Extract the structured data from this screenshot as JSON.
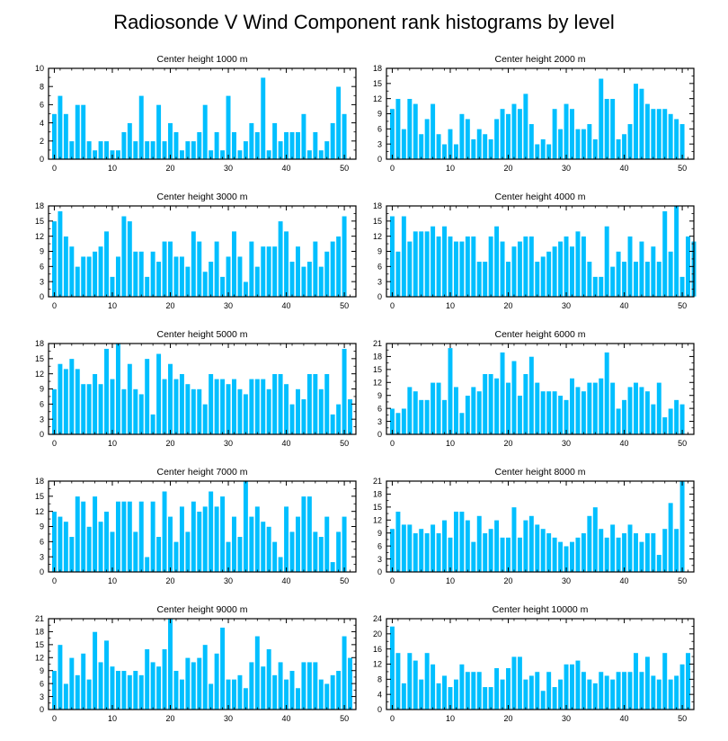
{
  "title": "Radiosonde V Wind Component rank histograms by level",
  "colors": {
    "bar": "#00BFFF",
    "bar_edge": "#ffffff",
    "axis": "#000000"
  },
  "chart_data": [
    {
      "type": "bar",
      "title": "Center height 1000 m",
      "xlim": [
        -1,
        52
      ],
      "ylim": [
        0,
        10
      ],
      "xticks": [
        0,
        10,
        20,
        30,
        40,
        50
      ],
      "yticks": [
        0,
        2,
        4,
        6,
        8,
        10
      ],
      "values": [
        5,
        7,
        5,
        2,
        6,
        6,
        2,
        1,
        2,
        2,
        1,
        1,
        3,
        4,
        2,
        7,
        2,
        2,
        6,
        2,
        4,
        3,
        1,
        2,
        2,
        3,
        6,
        1,
        3,
        1,
        7,
        3,
        1,
        2,
        4,
        3,
        9,
        1,
        4,
        2,
        3,
        3,
        3,
        5,
        1,
        3,
        1,
        2,
        4,
        8,
        5
      ]
    },
    {
      "type": "bar",
      "title": "Center height 2000 m",
      "xlim": [
        -1,
        52
      ],
      "ylim": [
        0,
        18
      ],
      "xticks": [
        0,
        10,
        20,
        30,
        40,
        50
      ],
      "yticks": [
        0,
        3,
        6,
        9,
        12,
        15,
        18
      ],
      "values": [
        10,
        12,
        6,
        12,
        11,
        5,
        8,
        11,
        5,
        3,
        6,
        3,
        9,
        8,
        4,
        6,
        5,
        4,
        8,
        10,
        9,
        11,
        10,
        13,
        7,
        3,
        4,
        3,
        10,
        6,
        11,
        10,
        6,
        6,
        7,
        4,
        16,
        12,
        12,
        4,
        5,
        7,
        15,
        14,
        11,
        10,
        10,
        10,
        9,
        8,
        7
      ]
    },
    {
      "type": "bar",
      "title": "Center height 3000 m",
      "xlim": [
        -1,
        52
      ],
      "ylim": [
        0,
        18
      ],
      "xticks": [
        0,
        10,
        20,
        30,
        40,
        50
      ],
      "yticks": [
        0,
        3,
        6,
        9,
        12,
        15,
        18
      ],
      "values": [
        15,
        17,
        12,
        10,
        6,
        8,
        8,
        9,
        10,
        13,
        4,
        8,
        16,
        15,
        9,
        9,
        4,
        9,
        7,
        11,
        11,
        8,
        8,
        6,
        13,
        11,
        5,
        7,
        11,
        4,
        8,
        13,
        8,
        3,
        11,
        6,
        10,
        10,
        10,
        15,
        13,
        7,
        10,
        6,
        7,
        11,
        6,
        9,
        11,
        12,
        16
      ]
    },
    {
      "type": "bar",
      "title": "Center height 4000 m",
      "xlim": [
        -1,
        52
      ],
      "ylim": [
        0,
        18
      ],
      "xticks": [
        0,
        10,
        20,
        30,
        40,
        50
      ],
      "yticks": [
        0,
        3,
        6,
        9,
        12,
        15,
        18
      ],
      "values": [
        16,
        9,
        16,
        11,
        13,
        13,
        13,
        14,
        12,
        14,
        12,
        11,
        11,
        12,
        12,
        7,
        7,
        12,
        14,
        11,
        7,
        10,
        11,
        12,
        12,
        7,
        8,
        9,
        10,
        11,
        12,
        10,
        13,
        12,
        7,
        4,
        4,
        14,
        6,
        9,
        7,
        12,
        7,
        11,
        7,
        10,
        7,
        17,
        9,
        18,
        4,
        12,
        11
      ]
    },
    {
      "type": "bar",
      "title": "Center height 5000 m",
      "xlim": [
        -1,
        52
      ],
      "ylim": [
        0,
        18
      ],
      "xticks": [
        0,
        10,
        20,
        30,
        40,
        50
      ],
      "yticks": [
        0,
        3,
        6,
        9,
        12,
        15,
        18
      ],
      "values": [
        9,
        14,
        13,
        15,
        13,
        10,
        10,
        12,
        10,
        17,
        11,
        18,
        9,
        14,
        9,
        8,
        15,
        4,
        16,
        11,
        14,
        11,
        12,
        10,
        9,
        9,
        6,
        12,
        11,
        11,
        10,
        11,
        9,
        8,
        11,
        11,
        11,
        9,
        12,
        12,
        10,
        6,
        9,
        7,
        12,
        12,
        9,
        12,
        4,
        6,
        17,
        7
      ]
    },
    {
      "type": "bar",
      "title": "Center height 6000 m",
      "xlim": [
        -1,
        52
      ],
      "ylim": [
        0,
        21
      ],
      "xticks": [
        0,
        10,
        20,
        30,
        40,
        50
      ],
      "yticks": [
        0,
        3,
        6,
        9,
        12,
        15,
        18,
        21
      ],
      "values": [
        6,
        5,
        6,
        11,
        10,
        8,
        8,
        12,
        12,
        8,
        20,
        11,
        5,
        9,
        11,
        10,
        14,
        14,
        13,
        19,
        12,
        17,
        9,
        14,
        18,
        12,
        10,
        10,
        10,
        9,
        8,
        13,
        11,
        10,
        12,
        12,
        13,
        19,
        12,
        6,
        8,
        11,
        12,
        11,
        10,
        7,
        12,
        4,
        6,
        8,
        7
      ]
    },
    {
      "type": "bar",
      "title": "Center height 7000 m",
      "xlim": [
        -1,
        52
      ],
      "ylim": [
        0,
        18
      ],
      "xticks": [
        0,
        10,
        20,
        30,
        40,
        50
      ],
      "yticks": [
        0,
        3,
        6,
        9,
        12,
        15,
        18
      ],
      "values": [
        12,
        11,
        10,
        7,
        15,
        14,
        9,
        15,
        10,
        12,
        8,
        14,
        14,
        14,
        8,
        14,
        3,
        14,
        7,
        16,
        11,
        6,
        13,
        8,
        14,
        12,
        13,
        16,
        13,
        15,
        6,
        11,
        7,
        18,
        11,
        13,
        10,
        9,
        6,
        3,
        13,
        8,
        11,
        15,
        15,
        8,
        7,
        11,
        2,
        8,
        11
      ]
    },
    {
      "type": "bar",
      "title": "Center height 8000 m",
      "xlim": [
        -1,
        52
      ],
      "ylim": [
        0,
        21
      ],
      "xticks": [
        0,
        10,
        20,
        30,
        40,
        50
      ],
      "yticks": [
        0,
        3,
        6,
        9,
        12,
        15,
        18,
        21
      ],
      "values": [
        10,
        14,
        11,
        11,
        9,
        10,
        9,
        11,
        9,
        12,
        8,
        14,
        14,
        12,
        7,
        13,
        9,
        10,
        12,
        8,
        8,
        15,
        8,
        12,
        13,
        11,
        10,
        9,
        8,
        7,
        6,
        7,
        8,
        9,
        13,
        15,
        10,
        8,
        11,
        8,
        9,
        11,
        9,
        7,
        9,
        9,
        4,
        10,
        16,
        10,
        21
      ]
    },
    {
      "type": "bar",
      "title": "Center height 9000 m",
      "xlim": [
        -1,
        52
      ],
      "ylim": [
        0,
        21
      ],
      "xticks": [
        0,
        10,
        20,
        30,
        40,
        50
      ],
      "yticks": [
        0,
        3,
        6,
        9,
        12,
        15,
        18,
        21
      ],
      "values": [
        9,
        15,
        6,
        12,
        8,
        13,
        7,
        18,
        11,
        16,
        10,
        9,
        9,
        8,
        9,
        8,
        14,
        11,
        10,
        14,
        21,
        9,
        7,
        12,
        11,
        12,
        15,
        6,
        13,
        19,
        7,
        7,
        8,
        5,
        11,
        17,
        10,
        14,
        8,
        11,
        7,
        9,
        5,
        11,
        11,
        11,
        7,
        6,
        8,
        9,
        17,
        12
      ]
    },
    {
      "type": "bar",
      "title": "Center height 10000 m",
      "xlim": [
        -1,
        52
      ],
      "ylim": [
        0,
        24
      ],
      "xticks": [
        0,
        10,
        20,
        30,
        40,
        50
      ],
      "yticks": [
        0,
        4,
        8,
        12,
        16,
        20,
        24
      ],
      "values": [
        22,
        15,
        7,
        15,
        13,
        8,
        15,
        12,
        7,
        9,
        6,
        8,
        12,
        10,
        10,
        10,
        6,
        6,
        11,
        8,
        11,
        14,
        14,
        8,
        9,
        10,
        5,
        10,
        6,
        8,
        12,
        12,
        13,
        10,
        8,
        7,
        10,
        9,
        8,
        10,
        10,
        10,
        15,
        10,
        14,
        9,
        8,
        15,
        8,
        9,
        12,
        15
      ]
    }
  ]
}
